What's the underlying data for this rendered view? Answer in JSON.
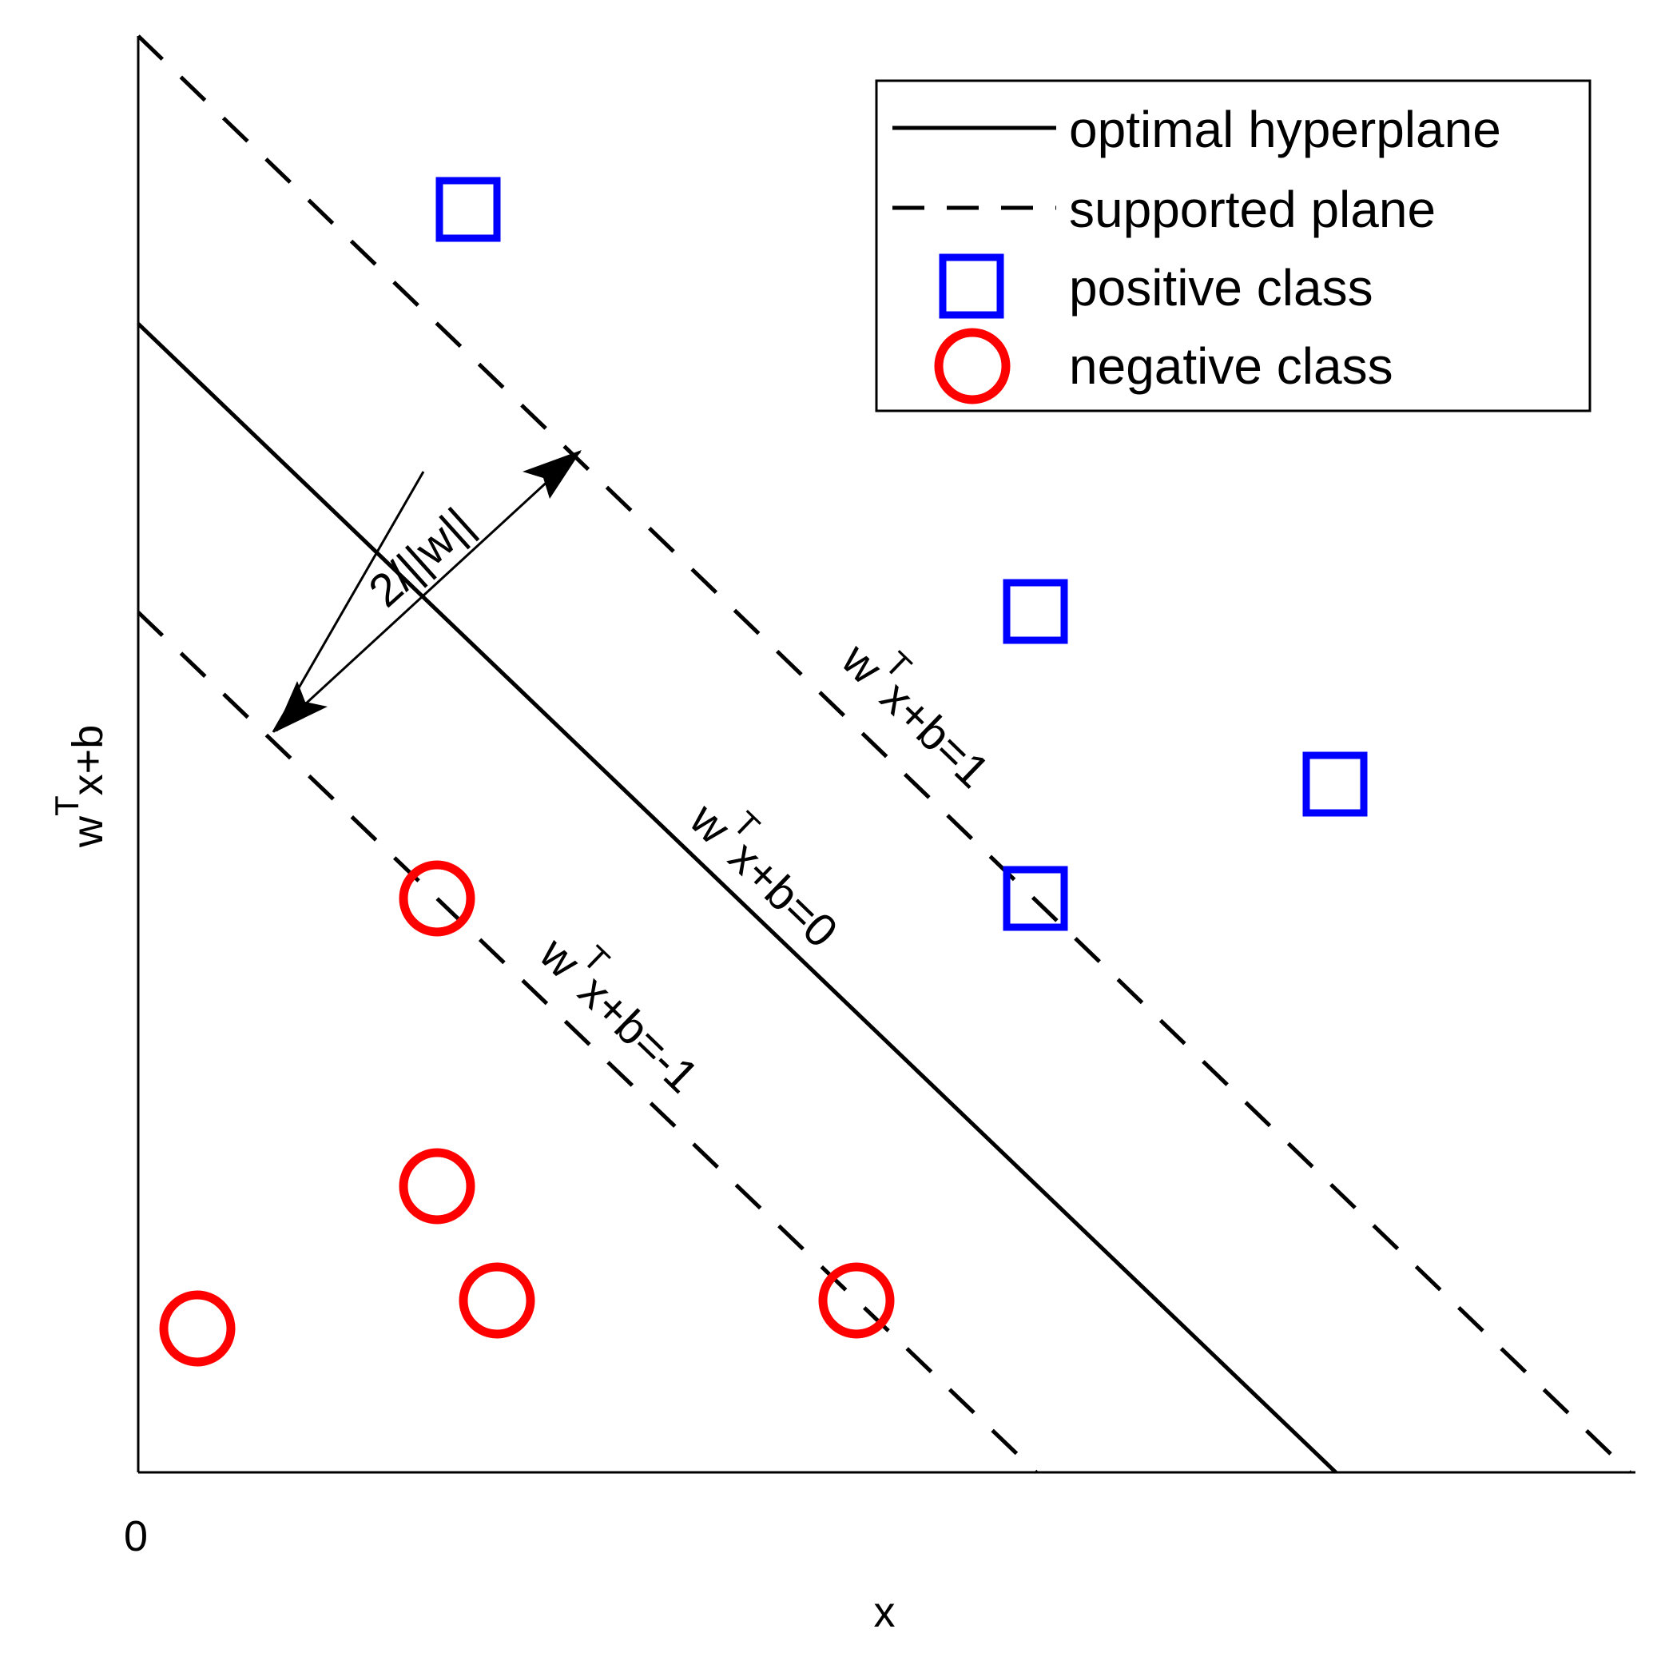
{
  "diagram": {
    "x_axis": {
      "label": "x",
      "origin_label": "0"
    },
    "y_axis": {
      "label_main": "w",
      "label_sup": "T",
      "label_tail": "x+b"
    },
    "legend": {
      "items": [
        {
          "label": "optimal hyperplane",
          "marker": "solid-line"
        },
        {
          "label": "supported plane",
          "marker": "dashed-line"
        },
        {
          "label": "positive class",
          "marker": "blue-square"
        },
        {
          "label": "negative class",
          "marker": "red-circle"
        }
      ]
    },
    "annotations": {
      "margin": "2/||w||",
      "plane_pos": {
        "main": "w",
        "sup": "T",
        "tail": "x+b=1"
      },
      "plane_zero": {
        "main": "w",
        "sup": "T",
        "tail": "x+b=0"
      },
      "plane_neg": {
        "main": "w",
        "sup": "T",
        "tail": "x+b=-1"
      }
    },
    "colors": {
      "positive": "#0000ff",
      "negative": "#ff0000",
      "line": "#000000"
    }
  }
}
